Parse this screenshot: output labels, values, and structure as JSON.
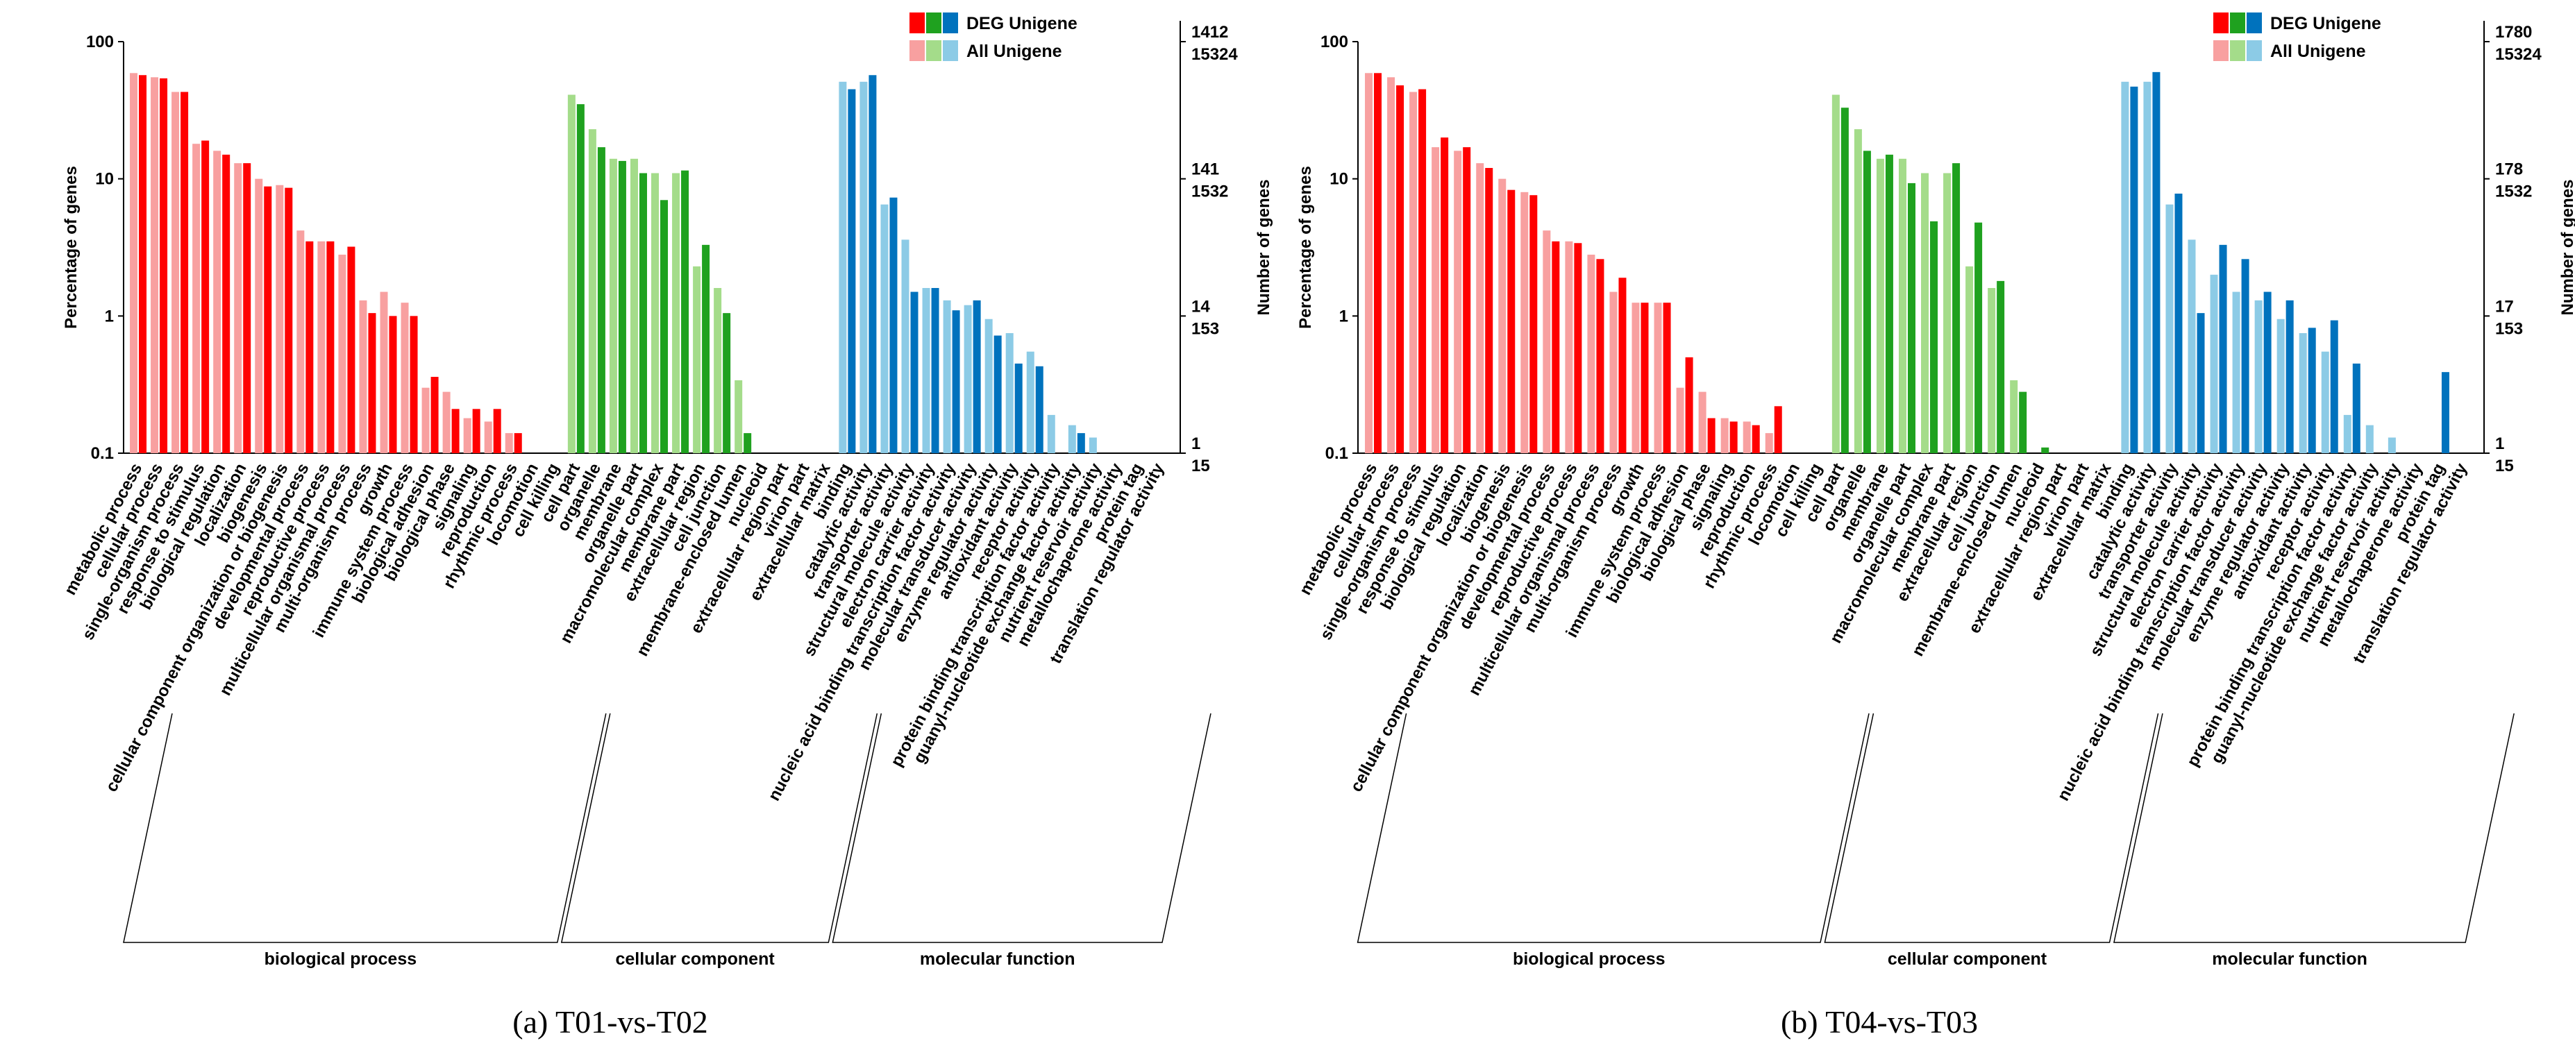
{
  "colors": {
    "deg": [
      "#ff0000",
      "#1fa11f",
      "#0072bd"
    ],
    "all": [
      "#f8a0a0",
      "#a4dc8a",
      "#8ccbe6"
    ]
  },
  "categories": [
    "metabolic process",
    "cellular process",
    "single-organism process",
    "response to stimulus",
    "biological regulation",
    "localization",
    "biogenesis",
    "cellular component organization or biogenesis",
    "developmental process",
    "reproductive process",
    "multicellular organismal process",
    "multi-organism process",
    "growth",
    "immune system process",
    "biological adhesion",
    "biological phase",
    "signaling",
    "reproduction",
    "rhythmic process",
    "locomotion",
    "cell killing",
    "cell part",
    "organelle",
    "membrane",
    "organelle part",
    "macromolecular complex",
    "membrane part",
    "extracellular region",
    "cell junction",
    "membrane-enclosed lumen",
    "nucleoid",
    "extracellular region part",
    "virion part",
    "extracellular matrix",
    "binding",
    "catalytic activity",
    "transporter activity",
    "structural molecule activity",
    "electron carrier activity",
    "nucleic acid binding transcription factor activity",
    "molecular transducer activity",
    "enzyme regulator activity",
    "antioxidant activity",
    "receptor activity",
    "protein binding transcription factor activity",
    "guanyl-nucleotide exchange factor activity",
    "nutrient reservoir activity",
    "metallochaperone activity",
    "protein tag",
    "translation regulator activity"
  ],
  "groups": [
    {
      "label": "biological process",
      "start": 0,
      "end": 20,
      "color": 0
    },
    {
      "label": "cellular component",
      "start": 21,
      "end": 33,
      "color": 1
    },
    {
      "label": "molecular function",
      "start": 34,
      "end": 49,
      "color": 2
    }
  ],
  "chart_data": [
    {
      "type": "bar",
      "caption": "(a) T01-vs-T02",
      "ylabel": "Percentage of genes",
      "ylabel_right": "Number of genes",
      "yscale": "log",
      "ylim": [
        0.1,
        100
      ],
      "yticks": [
        "100",
        "10",
        "1",
        "0.1"
      ],
      "right_ticks": [
        [
          "1412",
          "15324"
        ],
        [
          "141",
          "1532"
        ],
        [
          "14",
          "153"
        ],
        [
          "1",
          "15"
        ]
      ],
      "legend": [
        "DEG Unigene",
        "All Unigene"
      ],
      "series": [
        {
          "name": "All Unigene",
          "values": [
            59,
            55,
            43,
            18,
            16,
            13,
            10,
            9,
            4.2,
            3.5,
            2.8,
            1.3,
            1.5,
            1.25,
            0.3,
            0.28,
            0.18,
            0.17,
            0.14,
            0.1,
            0.1,
            41,
            23,
            14,
            14,
            11,
            11,
            2.3,
            1.6,
            0.34,
            0.1,
            0.1,
            0.1,
            0.1,
            51,
            51,
            6.5,
            3.6,
            1.6,
            1.3,
            1.2,
            0.95,
            0.75,
            0.55,
            0.19,
            0.16,
            0.13,
            0.1,
            0.1,
            0.1
          ]
        },
        {
          "name": "DEG Unigene",
          "values": [
            57,
            54,
            43,
            19,
            15,
            13,
            8.8,
            8.6,
            3.5,
            3.5,
            3.2,
            1.05,
            1.0,
            1.0,
            0.36,
            0.21,
            0.21,
            0.21,
            0.14,
            0.1,
            0.1,
            35,
            17,
            13.5,
            11,
            7,
            11.5,
            3.3,
            1.05,
            0.14,
            0.1,
            0.1,
            0.1,
            0.1,
            45,
            57,
            7.3,
            1.5,
            1.6,
            1.1,
            1.3,
            0.72,
            0.45,
            0.43,
            0.1,
            0.14,
            0.1,
            0.1,
            0.1,
            0.1
          ]
        }
      ]
    },
    {
      "type": "bar",
      "caption": "(b) T04-vs-T03",
      "ylabel": "Percentage of genes",
      "ylabel_right": "Number of genes",
      "yscale": "log",
      "ylim": [
        0.1,
        100
      ],
      "yticks": [
        "100",
        "10",
        "1",
        "0.1"
      ],
      "right_ticks": [
        [
          "1780",
          "15324"
        ],
        [
          "178",
          "1532"
        ],
        [
          "17",
          "153"
        ],
        [
          "1",
          "15"
        ]
      ],
      "legend": [
        "DEG Unigene",
        "All Unigene"
      ],
      "series": [
        {
          "name": "All Unigene",
          "values": [
            59,
            55,
            43,
            17,
            16,
            13,
            10,
            8,
            4.2,
            3.5,
            2.8,
            1.5,
            1.25,
            1.25,
            0.3,
            0.28,
            0.18,
            0.17,
            0.14,
            0.1,
            0.1,
            41,
            23,
            14,
            14,
            11,
            11,
            2.3,
            1.6,
            0.34,
            0.1,
            0.1,
            0.1,
            0.1,
            51,
            51,
            6.5,
            3.6,
            2.0,
            1.5,
            1.3,
            0.95,
            0.75,
            0.55,
            0.19,
            0.16,
            0.13,
            0.1,
            0.1,
            0.1
          ]
        },
        {
          "name": "DEG Unigene",
          "values": [
            59,
            48,
            45,
            20,
            17,
            12,
            8.3,
            7.6,
            3.5,
            3.4,
            2.6,
            1.9,
            1.25,
            1.25,
            0.5,
            0.18,
            0.17,
            0.16,
            0.22,
            0.1,
            0.1,
            33,
            16,
            15,
            9.3,
            4.9,
            13,
            4.8,
            1.8,
            0.28,
            0.11,
            0.1,
            0.1,
            0.1,
            47,
            60,
            7.8,
            1.05,
            3.3,
            2.6,
            1.5,
            1.3,
            0.82,
            0.93,
            0.45,
            0.1,
            0.1,
            0.1,
            0.39,
            0.1
          ]
        }
      ]
    }
  ]
}
